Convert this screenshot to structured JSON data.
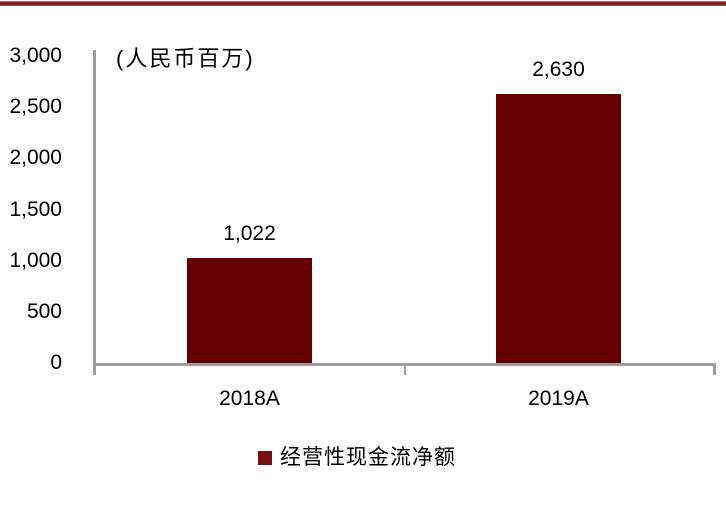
{
  "page": {
    "background": "#ffffff",
    "top_rule_color": "#7c1d1d",
    "bottom_rule_color": "#741414"
  },
  "chart_data": {
    "type": "bar",
    "unit_label": "(人民币百万)",
    "categories": [
      "2018A",
      "2019A"
    ],
    "series": [
      {
        "name": "经营性现金流净额",
        "values": [
          1022,
          2630
        ]
      }
    ],
    "value_labels": [
      "1,022",
      "2,630"
    ],
    "title": "",
    "xlabel": "",
    "ylabel": "",
    "ylim": [
      0,
      3000
    ],
    "ytick_interval": 500,
    "ytick_labels": [
      "3,000",
      "2,500",
      "2,000",
      "1,500",
      "1,000",
      "500",
      "0"
    ],
    "grid": false,
    "legend_position": "bottom",
    "bar_color": "#640000",
    "axis_color": "#9d9d9d",
    "legend": {
      "marker_color": "#7a0f0f",
      "label": "经营性现金流净额"
    }
  }
}
